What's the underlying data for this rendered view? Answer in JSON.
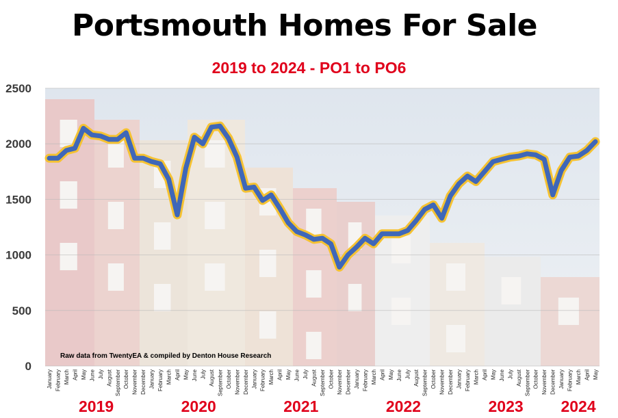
{
  "colors": {
    "title": "#000000",
    "subtitle": "#e0001b",
    "year_labels": "#e0001b",
    "line": "#3f67b8",
    "line_glow": "#f5c232"
  },
  "chart_data": {
    "type": "line",
    "title": "Portsmouth Homes For Sale",
    "subtitle": "2019 to 2024 - PO1 to PO6",
    "note": "Raw data from TwentyEA & compiled by Denton House Research",
    "xlabel": "",
    "ylabel": "",
    "ylim": [
      0,
      2500
    ],
    "yticks": [
      0,
      500,
      1000,
      1500,
      2000,
      2500
    ],
    "grid": true,
    "legend": "none",
    "x": [
      "January",
      "February",
      "March",
      "April",
      "May",
      "June",
      "July",
      "August",
      "September",
      "October",
      "November",
      "December",
      "January",
      "February",
      "March",
      "April",
      "May",
      "June",
      "July",
      "August",
      "September",
      "October",
      "November",
      "December",
      "January",
      "February",
      "March",
      "April",
      "May",
      "June",
      "July",
      "August",
      "September",
      "October",
      "November",
      "December",
      "January",
      "February",
      "March",
      "April",
      "May",
      "June",
      "July",
      "August",
      "September",
      "October",
      "November",
      "December",
      "January",
      "February",
      "March",
      "April",
      "May",
      "June",
      "July",
      "August",
      "September",
      "October",
      "November",
      "December",
      "January",
      "February",
      "March",
      "April",
      "May"
    ],
    "years": [
      {
        "label": "2019",
        "start": 0,
        "end": 11
      },
      {
        "label": "2020",
        "start": 12,
        "end": 23
      },
      {
        "label": "2021",
        "start": 24,
        "end": 35
      },
      {
        "label": "2022",
        "start": 36,
        "end": 47
      },
      {
        "label": "2023",
        "start": 48,
        "end": 59
      },
      {
        "label": "2024",
        "start": 60,
        "end": 64
      }
    ],
    "series": [
      {
        "values": [
          1870,
          1870,
          1940,
          1960,
          2140,
          2080,
          2070,
          2040,
          2040,
          2100,
          1870,
          1870,
          1840,
          1820,
          1680,
          1360,
          1780,
          2060,
          2000,
          2150,
          2160,
          2050,
          1880,
          1600,
          1610,
          1490,
          1540,
          1420,
          1290,
          1210,
          1180,
          1140,
          1150,
          1100,
          890,
          1000,
          1070,
          1150,
          1100,
          1190,
          1190,
          1190,
          1220,
          1310,
          1410,
          1450,
          1330,
          1530,
          1640,
          1710,
          1660,
          1750,
          1840,
          1860,
          1880,
          1890,
          1910,
          1900,
          1860,
          1540,
          1760,
          1880,
          1890,
          1940,
          2020
        ]
      }
    ]
  }
}
